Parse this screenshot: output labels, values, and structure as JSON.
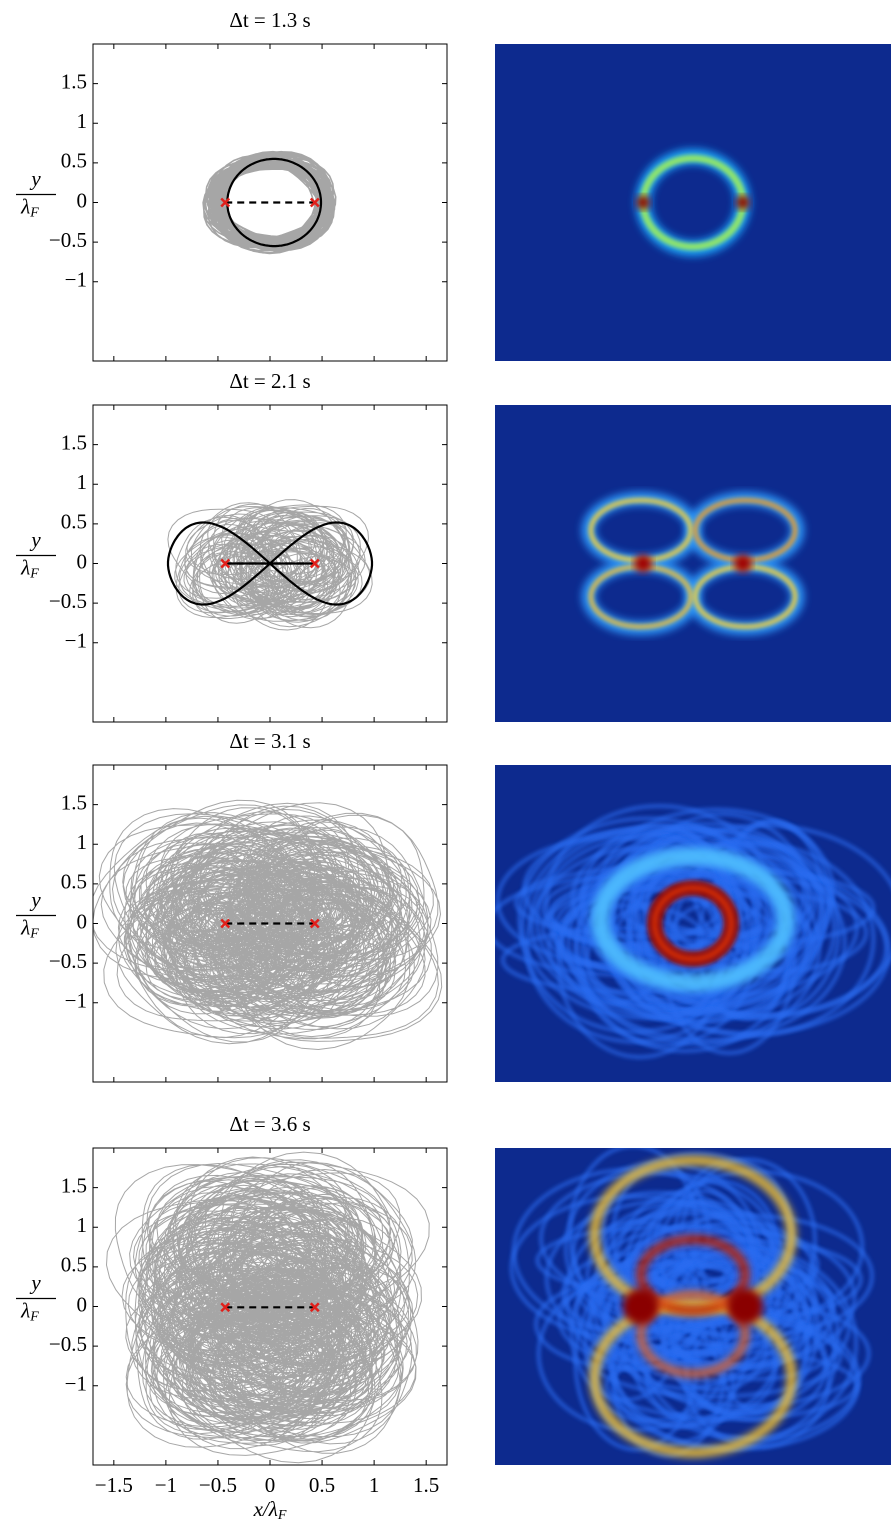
{
  "chart_data": [
    {
      "type": "line",
      "title": "Δt = 1.3 s",
      "xlim": [
        -1.7,
        1.7
      ],
      "ylim": [
        -2,
        2
      ],
      "xticks": [
        {
          "value": -1.5,
          "label": "−1.5"
        },
        {
          "value": -1,
          "label": "−1"
        },
        {
          "value": -0.5,
          "label": "−0.5"
        },
        0,
        0.5,
        1,
        1.5
      ],
      "yticks": [
        {
          "value": -1,
          "label": "−1"
        },
        {
          "value": -0.5,
          "label": "−0.5"
        },
        0,
        0.5,
        1,
        1.5
      ],
      "ylabel": {
        "num": "y",
        "den": "λ",
        "den_sub": "F"
      },
      "points": {
        "x": [
          -0.43,
          0.43
        ],
        "y": [
          0,
          0
        ],
        "color": "#e0201b"
      }
    },
    {
      "type": "line",
      "title": "Δt = 2.1 s",
      "xlim": [
        -1.7,
        1.7
      ],
      "ylim": [
        -2,
        2
      ],
      "xticks": [
        {
          "value": -1.5,
          "label": "−1.5"
        },
        {
          "value": -1,
          "label": "−1"
        },
        {
          "value": -0.5,
          "label": "−0.5"
        },
        0,
        0.5,
        1,
        1.5
      ],
      "yticks": [
        {
          "value": -1,
          "label": "−1"
        },
        {
          "value": -0.5,
          "label": "−0.5"
        },
        0,
        0.5,
        1,
        1.5
      ],
      "ylabel": {
        "num": "y",
        "den": "λ",
        "den_sub": "F"
      },
      "points": {
        "x": [
          -0.43,
          0.43
        ],
        "y": [
          0,
          0
        ],
        "color": "#e0201b"
      }
    },
    {
      "type": "line",
      "title": "Δt = 3.1 s",
      "xlim": [
        -1.7,
        1.7
      ],
      "ylim": [
        -2,
        2
      ],
      "xticks": [
        {
          "value": -1.5,
          "label": "−1.5"
        },
        {
          "value": -1,
          "label": "−1"
        },
        {
          "value": -0.5,
          "label": "−0.5"
        },
        0,
        0.5,
        1,
        1.5
      ],
      "yticks": [
        {
          "value": -1,
          "label": "−1"
        },
        {
          "value": -0.5,
          "label": "−0.5"
        },
        0,
        0.5,
        1,
        1.5
      ],
      "ylabel": {
        "num": "y",
        "den": "λ",
        "den_sub": "F"
      },
      "points": {
        "x": [
          -0.43,
          0.43
        ],
        "y": [
          0,
          0
        ],
        "color": "#e0201b"
      }
    },
    {
      "type": "line",
      "title": "Δt = 3.6 s",
      "xlim": [
        -1.7,
        1.7
      ],
      "ylim": [
        -2,
        2
      ],
      "xticks": [
        {
          "value": -1.5,
          "label": "−1.5"
        },
        {
          "value": -1,
          "label": "−1"
        },
        {
          "value": -0.5,
          "label": "−0.5"
        },
        0,
        0.5,
        1,
        1.5
      ],
      "yticks": [
        {
          "value": -1,
          "label": "−1"
        },
        {
          "value": -0.5,
          "label": "−0.5"
        },
        0,
        0.5,
        1,
        1.5
      ],
      "ylabel": {
        "num": "y",
        "den": "λ",
        "den_sub": "F"
      },
      "xlabel": {
        "text": "x/λ",
        "sub": "F"
      },
      "points": {
        "x": [
          -0.43,
          0.43
        ],
        "y": [
          -0.01,
          -0.01
        ],
        "color": "#e0201b"
      }
    }
  ]
}
